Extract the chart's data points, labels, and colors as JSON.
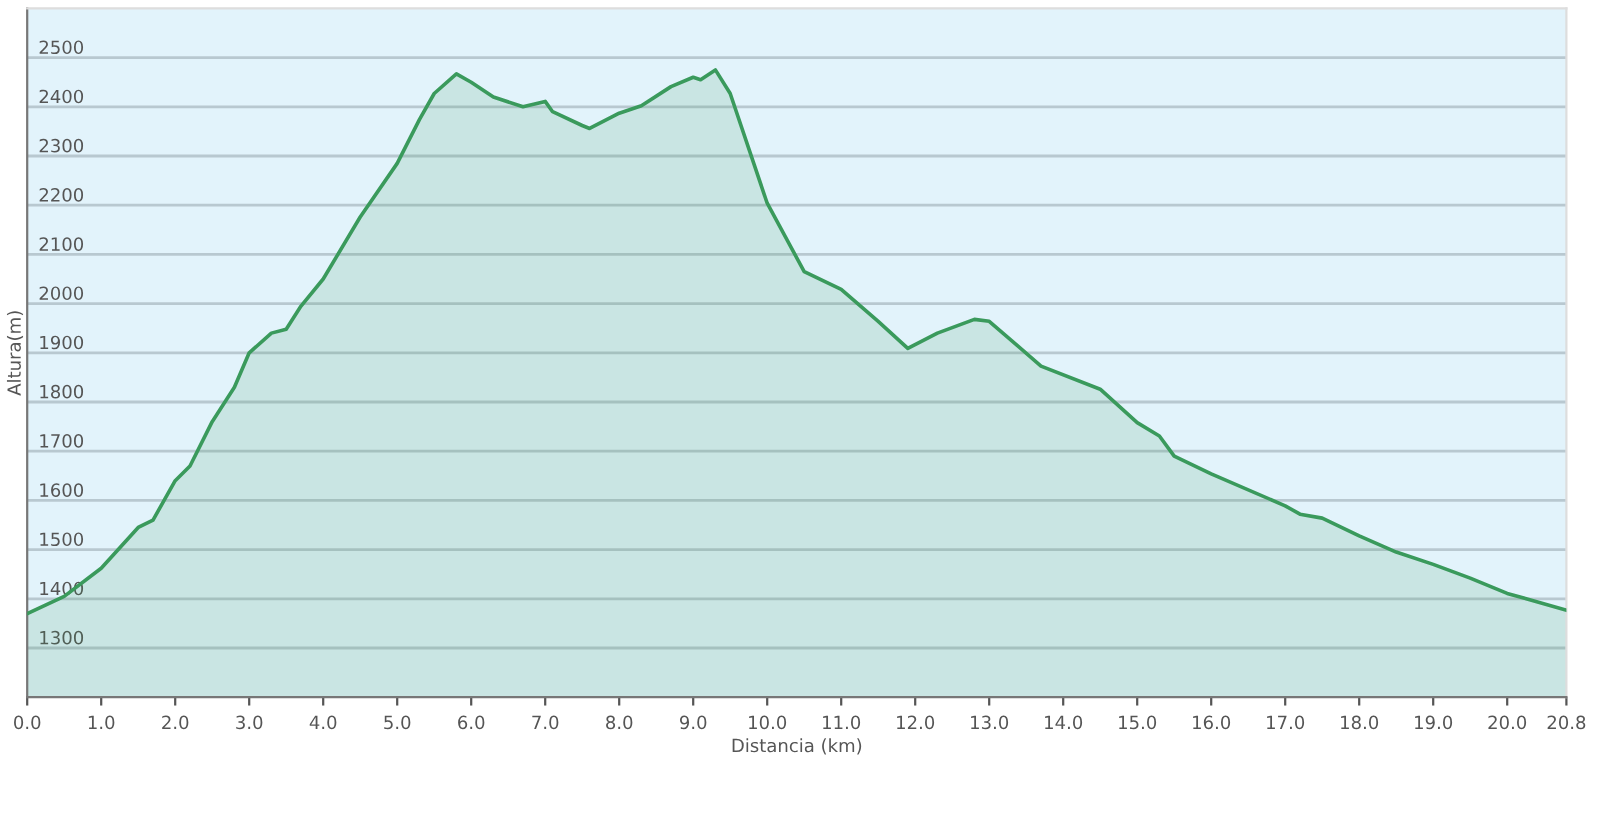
{
  "chart_data": {
    "type": "area",
    "xlabel": "Distancia (km)",
    "ylabel": "Altura(m)",
    "x": [
      0,
      0.5,
      1.0,
      1.5,
      1.7,
      2.0,
      2.2,
      2.5,
      2.8,
      3.0,
      3.3,
      3.5,
      3.7,
      4.0,
      4.5,
      5.0,
      5.3,
      5.5,
      5.8,
      6.0,
      6.3,
      6.7,
      7.0,
      7.1,
      7.5,
      7.6,
      8.0,
      8.3,
      8.7,
      9.0,
      9.1,
      9.3,
      9.5,
      10.0,
      10.5,
      11.0,
      11.5,
      11.9,
      12.3,
      12.8,
      13.0,
      13.7,
      14.5,
      15.0,
      15.3,
      15.5,
      16.0,
      17.0,
      17.2,
      17.5,
      18.0,
      18.5,
      19.0,
      19.5,
      20.0,
      20.8
    ],
    "series": [
      {
        "color": "#3a9a5c",
        "values": [
          1370,
          1405,
          1462,
          1545,
          1560,
          1640,
          1670,
          1760,
          1830,
          1900,
          1940,
          1948,
          1995,
          2050,
          2176,
          2285,
          2374,
          2427,
          2467,
          2450,
          2420,
          2400,
          2411,
          2390,
          2362,
          2356,
          2387,
          2402,
          2441,
          2460,
          2455,
          2475,
          2427,
          2204,
          2065,
          2029,
          1964,
          1909,
          1940,
          1968,
          1964,
          1873,
          1826,
          1758,
          1731,
          1690,
          1654,
          1589,
          1572,
          1564,
          1528,
          1495,
          1470,
          1442,
          1411,
          1377
        ]
      }
    ],
    "xlim": [
      0,
      20.8
    ],
    "xticks": [
      {
        "value": 0,
        "label": "0.0"
      },
      {
        "value": 1,
        "label": "1.0"
      },
      {
        "value": 2,
        "label": "2.0"
      },
      {
        "value": 3,
        "label": "3.0"
      },
      {
        "value": 4,
        "label": "4.0"
      },
      {
        "value": 5,
        "label": "5.0"
      },
      {
        "value": 6,
        "label": "6.0"
      },
      {
        "value": 7,
        "label": "7.0"
      },
      {
        "value": 8,
        "label": "8.0"
      },
      {
        "value": 9,
        "label": "9.0"
      },
      {
        "value": 10,
        "label": "10.0"
      },
      {
        "value": 11,
        "label": "11.0"
      },
      {
        "value": 12,
        "label": "12.0"
      },
      {
        "value": 13,
        "label": "13.0"
      },
      {
        "value": 14,
        "label": "14.0"
      },
      {
        "value": 15,
        "label": "15.0"
      },
      {
        "value": 16,
        "label": "16.0"
      },
      {
        "value": 17,
        "label": "17.0"
      },
      {
        "value": 18,
        "label": "18.0"
      },
      {
        "value": 19,
        "label": "19.0"
      },
      {
        "value": 20,
        "label": "20.0"
      },
      20.8
    ],
    "ylim": [
      1200,
      2600
    ],
    "yticks": [
      1300,
      1400,
      1500,
      1600,
      1700,
      1800,
      1900,
      2000,
      2100,
      2200,
      2300,
      2400,
      2500
    ],
    "grid": "y"
  }
}
